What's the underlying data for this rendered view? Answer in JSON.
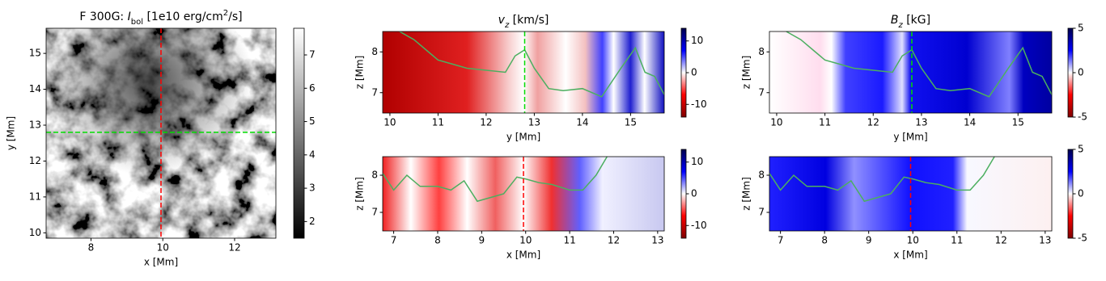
{
  "chart_data": [
    {
      "type": "heatmap",
      "cmap": "gray",
      "title_parts": [
        {
          "text": "F 300G: ",
          "style": "normal"
        },
        {
          "text": "I",
          "style": "italic"
        },
        {
          "text": "bol",
          "style": "sub"
        },
        {
          "text": " [1e10 erg/cm",
          "style": "normal"
        },
        {
          "text": "2",
          "style": "sup"
        },
        {
          "text": "/s]",
          "style": "normal"
        }
      ],
      "xlabel": "x [Mm]",
      "ylabel": "y [Mm]",
      "xlim": [
        6.75,
        13.15
      ],
      "ylim": [
        9.85,
        15.7
      ],
      "xticks": [
        8,
        10,
        12
      ],
      "yticks": [
        10,
        11,
        12,
        13,
        14,
        15
      ],
      "clim": [
        1.5,
        7.8
      ],
      "cticks": [
        2,
        3,
        4,
        5,
        6,
        7
      ],
      "cuts": [
        {
          "axis": "x",
          "value": 9.95,
          "color": "#ff0000"
        },
        {
          "axis": "y",
          "value": 12.8,
          "color": "#00dd00"
        }
      ]
    },
    {
      "type": "heatmap",
      "cmap": "seismic",
      "title_parts": [
        {
          "text": "v",
          "style": "italic"
        },
        {
          "text": "z",
          "style": "sub-italic"
        },
        {
          "text": " [km/s]",
          "style": "normal"
        }
      ],
      "xlabel": "y [Mm]",
      "ylabel": "z [Mm]",
      "xlim": [
        9.85,
        15.7
      ],
      "ylim": [
        6.5,
        8.5
      ],
      "xticks": [
        10,
        11,
        12,
        13,
        14,
        15
      ],
      "yticks": [
        7,
        8
      ],
      "clim": [
        -14,
        14
      ],
      "cticks": [
        -10,
        0,
        10
      ],
      "cuts": [
        {
          "axis": "x",
          "value": 12.8,
          "color": "#00dd00"
        }
      ],
      "contour": {
        "color": "#4caf60",
        "x": [
          10.2,
          10.5,
          10.8,
          11.0,
          11.3,
          11.6,
          12.0,
          12.4,
          12.6,
          12.8,
          13.0,
          13.3,
          13.6,
          14.0,
          14.4,
          14.8,
          15.1,
          15.3,
          15.5,
          15.7
        ],
        "values": [
          8.5,
          8.3,
          8.0,
          7.8,
          7.7,
          7.6,
          7.55,
          7.5,
          7.9,
          8.05,
          7.6,
          7.1,
          7.05,
          7.1,
          6.9,
          7.6,
          8.1,
          7.5,
          7.4,
          6.95
        ]
      }
    },
    {
      "type": "heatmap",
      "cmap": "seismic",
      "title_parts": [
        {
          "text": "B",
          "style": "italic"
        },
        {
          "text": "z",
          "style": "sub-italic"
        },
        {
          "text": " [kG]",
          "style": "normal"
        }
      ],
      "xlabel": "y [Mm]",
      "ylabel": "z [Mm]",
      "xlim": [
        9.85,
        15.7
      ],
      "ylim": [
        6.5,
        8.5
      ],
      "xticks": [
        10,
        11,
        12,
        13,
        14,
        15
      ],
      "yticks": [
        7,
        8
      ],
      "clim": [
        -5,
        5
      ],
      "cticks": [
        -5,
        0,
        5
      ],
      "cuts": [
        {
          "axis": "x",
          "value": 12.8,
          "color": "#00dd00"
        }
      ],
      "contour": {
        "color": "#4caf60",
        "x": [
          10.2,
          10.5,
          10.8,
          11.0,
          11.3,
          11.6,
          12.0,
          12.4,
          12.6,
          12.8,
          13.0,
          13.3,
          13.6,
          14.0,
          14.4,
          14.8,
          15.1,
          15.3,
          15.5,
          15.7
        ],
        "values": [
          8.5,
          8.3,
          8.0,
          7.8,
          7.7,
          7.6,
          7.55,
          7.5,
          7.9,
          8.05,
          7.6,
          7.1,
          7.05,
          7.1,
          6.9,
          7.6,
          8.1,
          7.5,
          7.4,
          6.95
        ]
      }
    },
    {
      "type": "heatmap",
      "cmap": "seismic",
      "xlabel": "x [Mm]",
      "ylabel": "z [Mm]",
      "xlim": [
        6.75,
        13.15
      ],
      "ylim": [
        6.5,
        8.5
      ],
      "xticks": [
        7,
        8,
        9,
        10,
        11,
        12,
        13
      ],
      "yticks": [
        7,
        8
      ],
      "clim": [
        -14,
        14
      ],
      "cticks": [
        -10,
        0,
        10
      ],
      "cuts": [
        {
          "axis": "x",
          "value": 9.95,
          "color": "#ff0000"
        }
      ],
      "contour": {
        "color": "#4caf60",
        "x": [
          6.75,
          7.0,
          7.3,
          7.6,
          8.0,
          8.3,
          8.6,
          8.9,
          9.2,
          9.5,
          9.8,
          10.0,
          10.3,
          10.6,
          11.0,
          11.3,
          11.6,
          11.85
        ],
        "values": [
          8.05,
          7.6,
          8.0,
          7.7,
          7.7,
          7.6,
          7.85,
          7.3,
          7.4,
          7.5,
          7.95,
          7.9,
          7.8,
          7.75,
          7.6,
          7.6,
          8.0,
          8.5
        ]
      }
    },
    {
      "type": "heatmap",
      "cmap": "seismic",
      "xlabel": "x [Mm]",
      "ylabel": "z [Mm]",
      "xlim": [
        6.75,
        13.15
      ],
      "ylim": [
        6.5,
        8.5
      ],
      "xticks": [
        7,
        8,
        9,
        10,
        11,
        12,
        13
      ],
      "yticks": [
        7,
        8
      ],
      "clim": [
        -5,
        5
      ],
      "cticks": [
        -5,
        0,
        5
      ],
      "cuts": [
        {
          "axis": "x",
          "value": 9.95,
          "color": "#ff0000"
        }
      ],
      "contour": {
        "color": "#4caf60",
        "x": [
          6.75,
          7.0,
          7.3,
          7.6,
          8.0,
          8.3,
          8.6,
          8.9,
          9.2,
          9.5,
          9.8,
          10.0,
          10.3,
          10.6,
          11.0,
          11.3,
          11.6,
          11.85
        ],
        "values": [
          8.05,
          7.6,
          8.0,
          7.7,
          7.7,
          7.6,
          7.85,
          7.3,
          7.4,
          7.5,
          7.95,
          7.9,
          7.8,
          7.75,
          7.6,
          7.6,
          8.0,
          8.5
        ]
      }
    }
  ]
}
